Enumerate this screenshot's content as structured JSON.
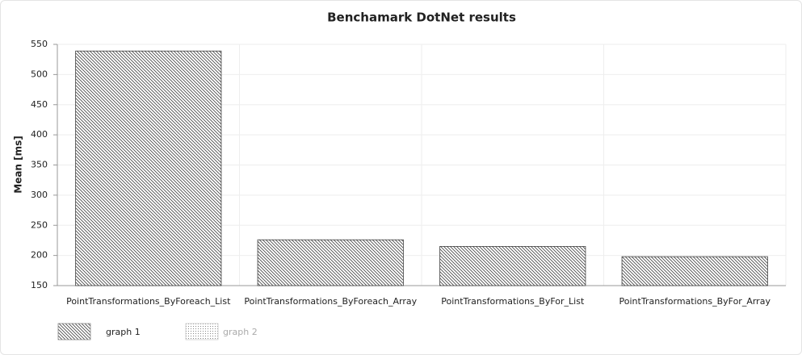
{
  "chart_data": {
    "type": "bar",
    "title": "Benchamark DotNet results",
    "y_label": "Mean [ms]",
    "categories": [
      "PointTransformations_ByForeach_List",
      "PointTransformations_ByForeach_Array",
      "PointTransformations_ByFor_List",
      "PointTransformations_ByFor_Array"
    ],
    "series": [
      {
        "name": "graph 1",
        "pattern": "hatch",
        "color": "#444444",
        "values": [
          539,
          226,
          215,
          198
        ]
      },
      {
        "name": "graph 2",
        "pattern": "dots",
        "color": "#999999",
        "hidden": true,
        "values": [
          null,
          null,
          null,
          null
        ]
      }
    ],
    "ylim": [
      150,
      550
    ],
    "yticks": [
      150,
      200,
      250,
      300,
      350,
      400,
      450,
      500,
      550
    ],
    "grid": true,
    "legend": "bottom-left"
  }
}
